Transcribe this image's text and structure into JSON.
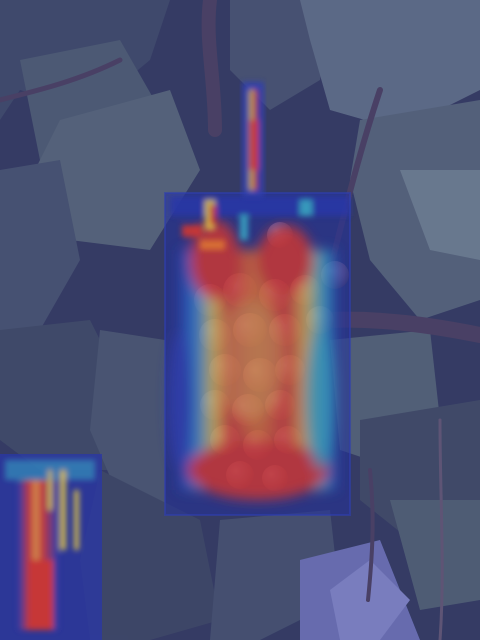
{
  "image": {
    "subject": "grapevine",
    "overlay": "attention-heatmap",
    "palette": {
      "background": "#2c3350",
      "leaf_dark": "#3e4a5a",
      "leaf_mid": "#5d6f73",
      "leaf_light": "#8fa6a4",
      "vine": "#4b3b52",
      "grape": "#8a6a7c",
      "haze": "#6a6fb8",
      "heat_low": "#1e2a9a",
      "heat_mid": "#2fa9c9",
      "heat_high": "#f2d23a",
      "heat_peak": "#e8331f"
    }
  }
}
